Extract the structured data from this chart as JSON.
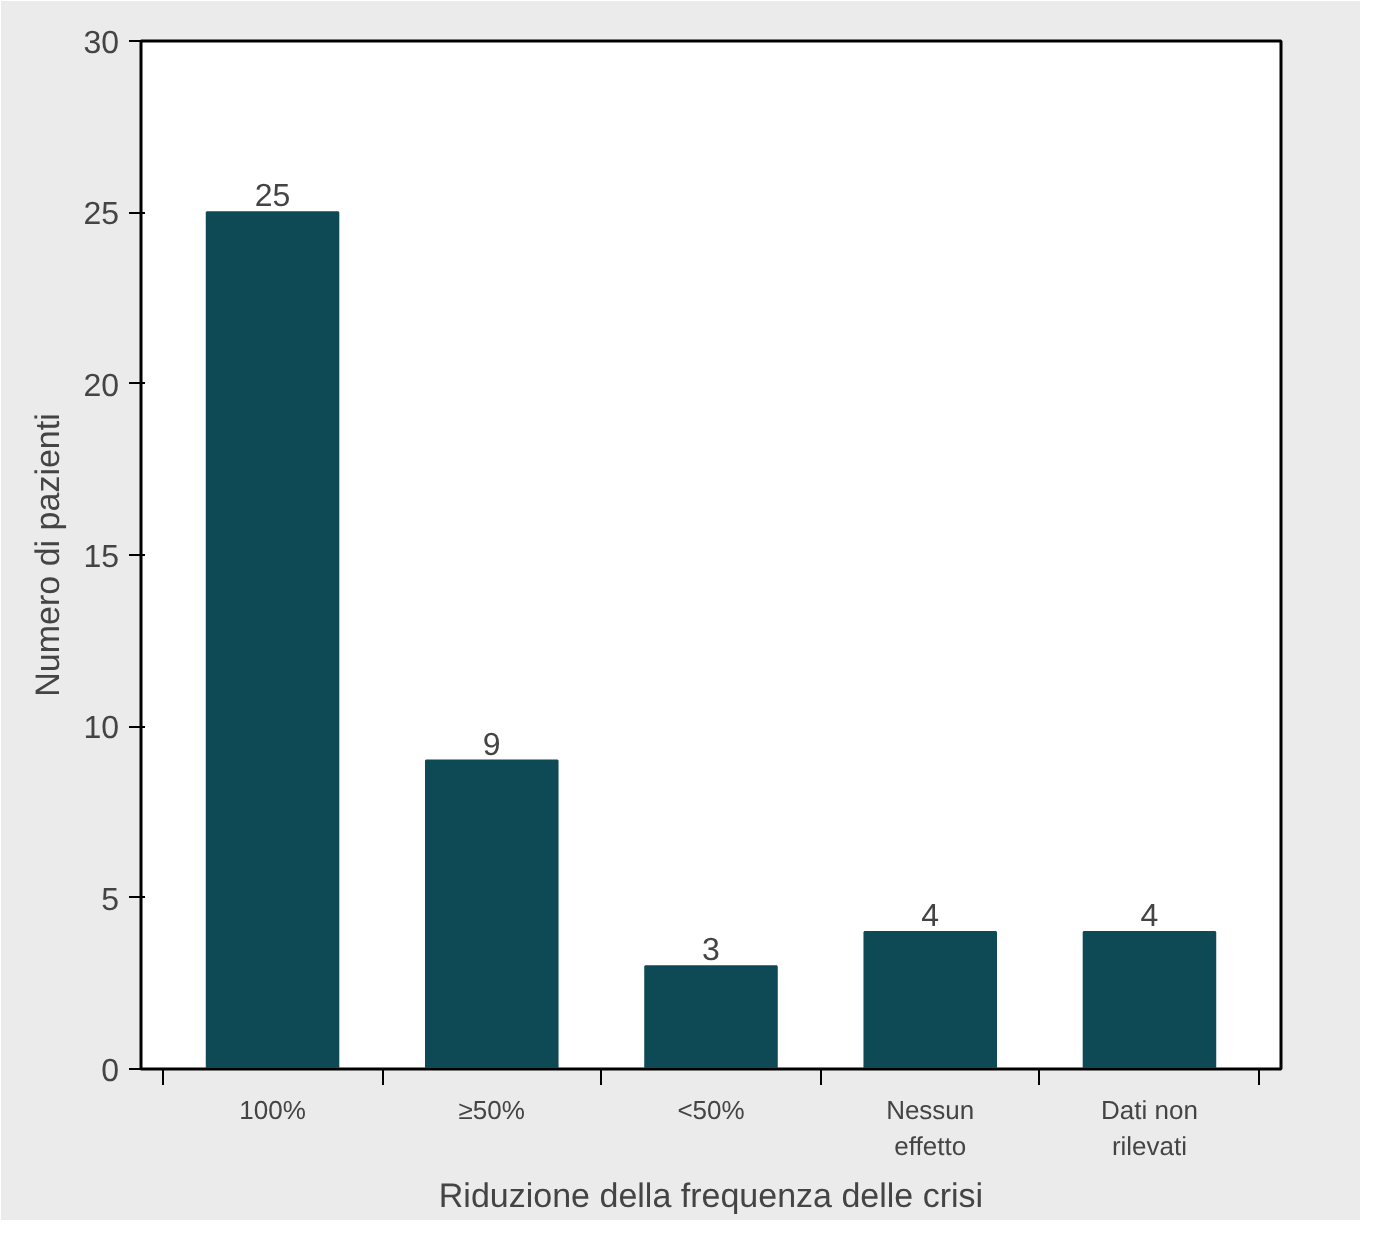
{
  "chart_data": {
    "type": "bar",
    "xlabel": "Riduzione della frequenza delle crisi",
    "ylabel": "Numero di pazienti",
    "categories": [
      "100%",
      "≥50%",
      "<50%",
      "Nessun\neffetto",
      "Dati non\nrilevati"
    ],
    "values": [
      25,
      9,
      3,
      4,
      4
    ],
    "color": "#0d4a55",
    "data_labels": true,
    "ylim": [
      0,
      30
    ],
    "yticks": [
      0,
      5,
      10,
      15,
      20,
      25,
      30
    ],
    "grid": false
  }
}
